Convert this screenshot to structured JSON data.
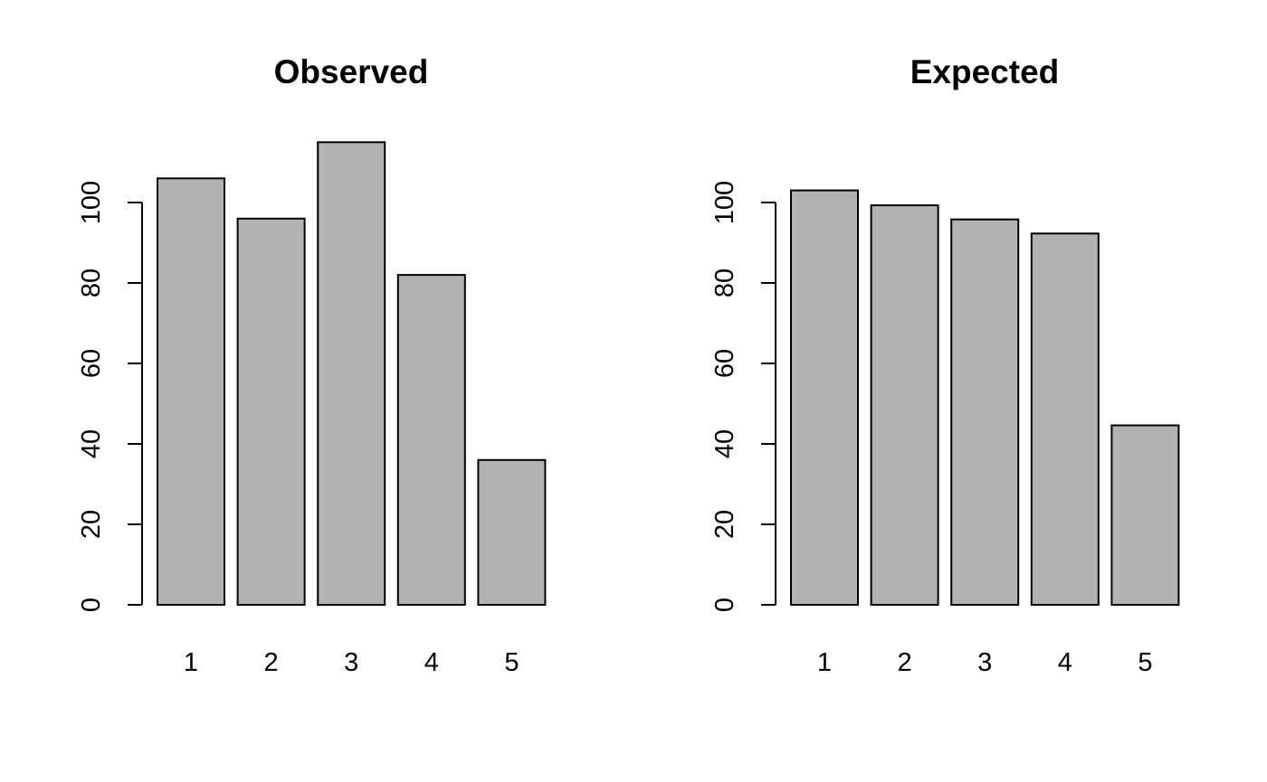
{
  "chart_data": [
    {
      "type": "bar",
      "title": "Observed",
      "categories": [
        "1",
        "2",
        "3",
        "4",
        "5"
      ],
      "values": [
        106,
        96,
        115,
        82,
        36
      ],
      "xlabel": "",
      "ylabel": "",
      "ylim": [
        0,
        115
      ],
      "yticks": [
        0,
        20,
        40,
        60,
        80,
        100
      ],
      "bar_color": "#b2b2b2",
      "grid": false
    },
    {
      "type": "bar",
      "title": "Expected",
      "categories": [
        "1",
        "2",
        "3",
        "4",
        "5"
      ],
      "values": [
        103,
        99.3,
        95.8,
        92.3,
        44.6
      ],
      "xlabel": "",
      "ylabel": "",
      "ylim": [
        0,
        115
      ],
      "yticks": [
        0,
        20,
        40,
        60,
        80,
        100
      ],
      "bar_color": "#b2b2b2",
      "grid": false
    }
  ]
}
